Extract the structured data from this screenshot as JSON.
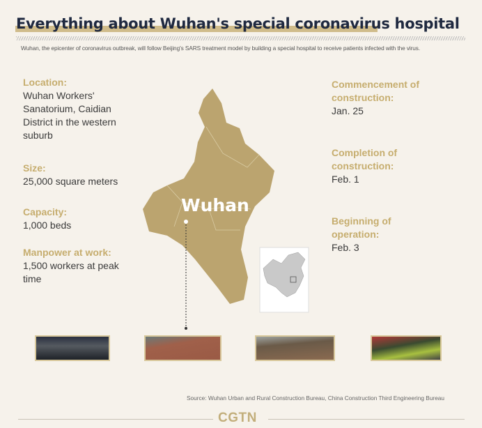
{
  "header": {
    "title": "Everything about Wuhan's special coronavirus hospital",
    "subtitle": "Wuhan, the epicenter of coronavirus outbreak, will follow Beijing's SARS treatment model by building a special hospital to receive patients infected with the virus."
  },
  "left_facts": [
    {
      "label": "Location:",
      "value": "Wuhan Workers' Sanatorium, Caidian District in the western suburb"
    },
    {
      "label": "Size:",
      "value": "25,000 square meters"
    },
    {
      "label": "Capacity:",
      "value": "1,000 beds"
    },
    {
      "label": "Manpower at work:",
      "value": "1,500 workers at peak time"
    }
  ],
  "right_facts": [
    {
      "label": "Commencement of construction:",
      "value": "Jan. 25"
    },
    {
      "label": "Completion of construction:",
      "value": "Feb. 1"
    },
    {
      "label": "Beginning of operation:",
      "value": "Feb. 3"
    }
  ],
  "map": {
    "city_label": "Wuhan",
    "fill_color": "#bba46f",
    "inset": "china-locator-map"
  },
  "photos": [
    "night-construction-site",
    "aerial-site-excavators",
    "site-bulldozers",
    "workers-in-vests"
  ],
  "footer": {
    "source": "Source: Wuhan Urban and Rural Construction Bureau, China Construction Third Engineering Bureau",
    "logo": "CGTN"
  },
  "colors": {
    "accent": "#c6ad6e",
    "title": "#1f2940",
    "background": "#f6f2eb"
  }
}
